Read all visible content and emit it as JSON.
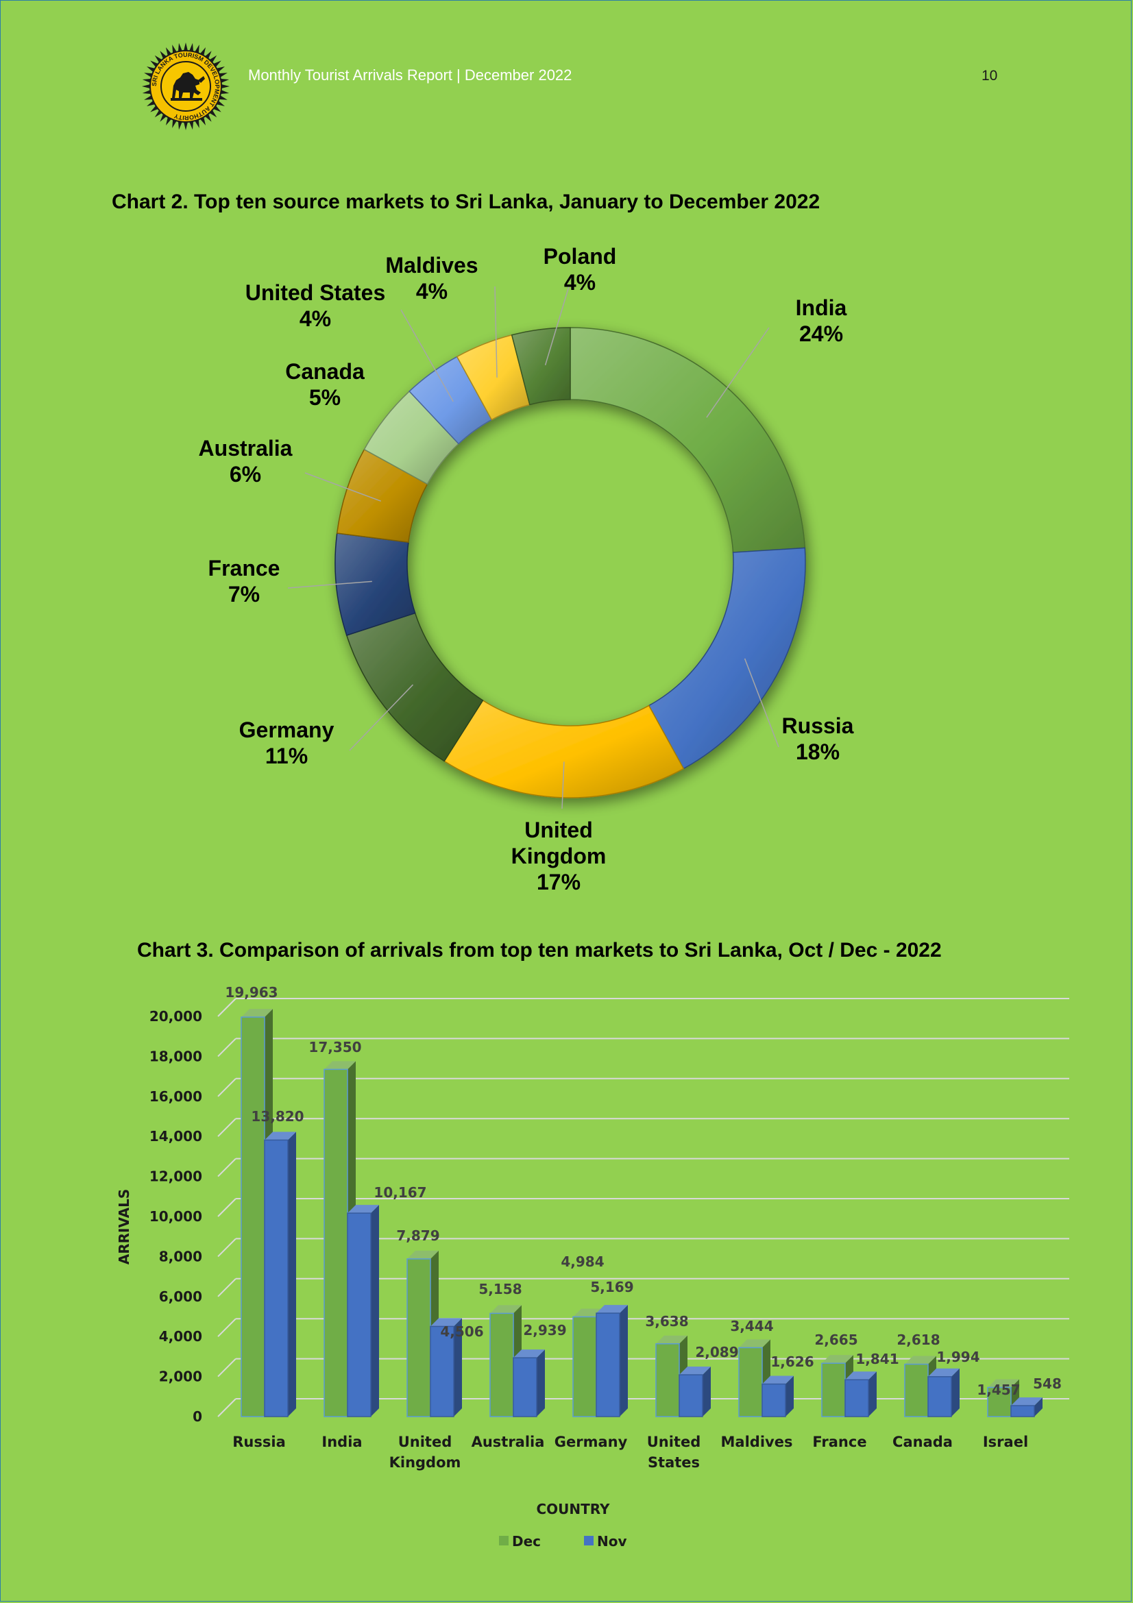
{
  "header": {
    "report_title": "Monthly Tourist Arrivals Report | December  2022",
    "page_number": "10"
  },
  "logo": {
    "name": "sri-lanka-tourism-seal",
    "text": "SRI LANKA TOURISM DEVELOPMENT AUTHORITY"
  },
  "colors": {
    "background": "#92d050",
    "dec": "#70ad47",
    "nov": "#4472c4"
  },
  "chart_data": [
    {
      "type": "pie",
      "title": "Chart 2. Top ten source markets to Sri Lanka, January to December 2022",
      "donut": true,
      "slices": [
        {
          "label": "India",
          "value": 24,
          "display": "24%",
          "color": "#70ad47"
        },
        {
          "label": "Russia",
          "value": 18,
          "display": "18%",
          "color": "#4472c4"
        },
        {
          "label": "United Kingdom",
          "value": 17,
          "display": "17%",
          "color": "#ffc000"
        },
        {
          "label": "Germany",
          "value": 11,
          "display": "11%",
          "color": "#43682b"
        },
        {
          "label": "France",
          "value": 7,
          "display": "7%",
          "color": "#264478"
        },
        {
          "label": "Australia",
          "value": 6,
          "display": "6%",
          "color": "#bf8f00"
        },
        {
          "label": "Canada",
          "value": 5,
          "display": "5%",
          "color": "#a9d18e"
        },
        {
          "label": "United States",
          "value": 4,
          "display": "4%",
          "color": "#6f9be8"
        },
        {
          "label": "Maldives",
          "value": 4,
          "display": "4%",
          "color": "#ffd030"
        },
        {
          "label": "Poland",
          "value": 4,
          "display": "4%",
          "color": "#548235"
        }
      ]
    },
    {
      "type": "bar",
      "title": "Chart 3. Comparison of arrivals from top ten markets to Sri Lanka, Oct  / Dec - 2022",
      "categories": [
        "Russia",
        "India",
        "United Kingdom",
        "Australia",
        "Germany",
        "United States",
        "Maldives",
        "France",
        "Canada",
        "Israel"
      ],
      "category_lines": [
        [
          "Russia"
        ],
        [
          "India"
        ],
        [
          "United",
          "Kingdom"
        ],
        [
          "Australia"
        ],
        [
          "Germany"
        ],
        [
          "United",
          "States"
        ],
        [
          "Maldives"
        ],
        [
          "France"
        ],
        [
          "Canada"
        ],
        [
          "Israel"
        ]
      ],
      "series": [
        {
          "name": "Dec",
          "values": [
            19963,
            17350,
            7879,
            5158,
            4984,
            3638,
            3444,
            2665,
            2618,
            1457
          ],
          "labels": [
            "19,963",
            "17,350",
            "7,879",
            "5,158",
            "4,984",
            "3,638",
            "3,444",
            "2,665",
            "2,618",
            "1,457"
          ]
        },
        {
          "name": "Nov",
          "values": [
            13820,
            10167,
            4506,
            2939,
            5169,
            2089,
            1626,
            1841,
            1994,
            548
          ],
          "labels": [
            "13,820",
            "10,167",
            "4,506",
            "2,939",
            "5,169",
            "2,089",
            "1,626",
            "1,841",
            "1,994",
            "548"
          ]
        }
      ],
      "xlabel": "COUNTRY",
      "ylabel": "ARRIVALS",
      "ylim": [
        0,
        20000
      ],
      "yticks": [
        "0",
        "2,000",
        "4,000",
        "6,000",
        "8,000",
        "10,000",
        "12,000",
        "14,000",
        "16,000",
        "18,000",
        "20,000"
      ],
      "grid": true,
      "legend_position": "bottom"
    }
  ]
}
